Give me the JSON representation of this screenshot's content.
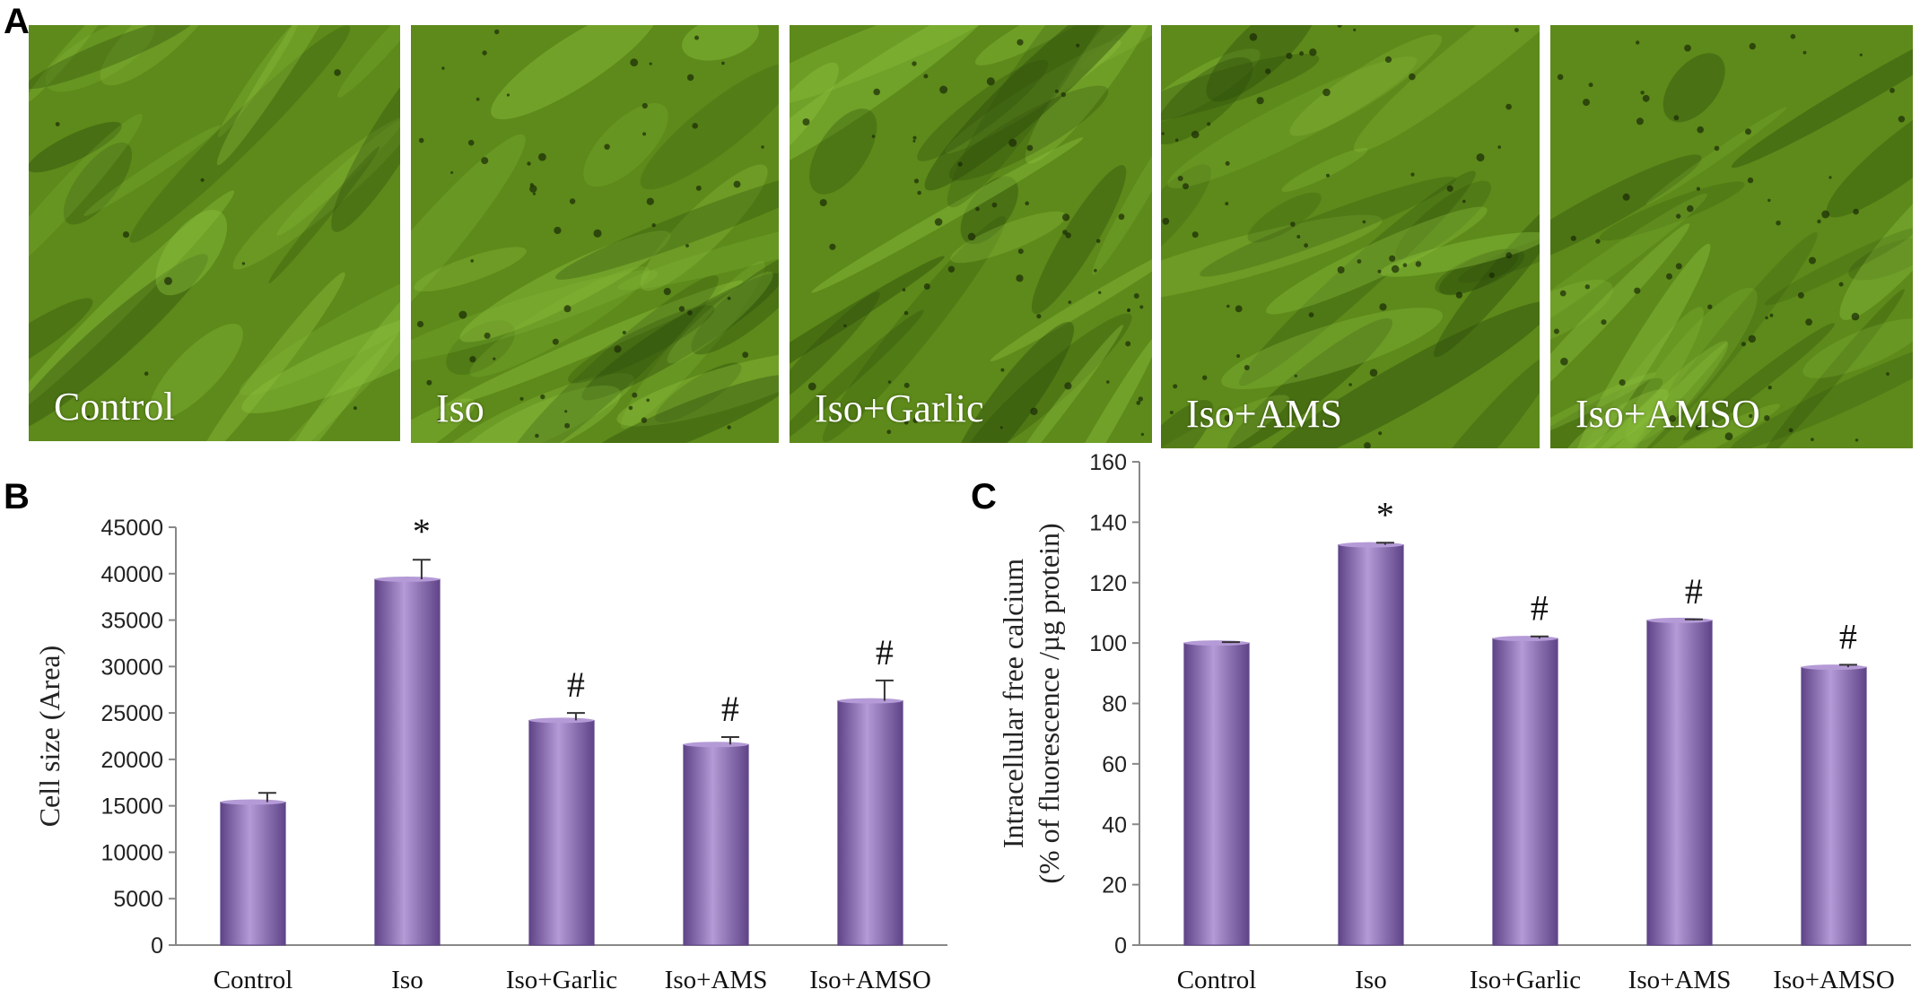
{
  "panel_a": {
    "letter": "A",
    "images": [
      {
        "label": "Control"
      },
      {
        "label": "Iso"
      },
      {
        "label": "Iso+Garlic"
      },
      {
        "label": "Iso+AMS"
      },
      {
        "label": "Iso+AMSO"
      }
    ],
    "colors": {
      "base": "#5d8a1a",
      "light": "#8fc23f",
      "dark": "#2b4a0a"
    }
  },
  "chart_data": [
    {
      "panel": "B",
      "type": "bar",
      "categories": [
        "Control",
        "Iso",
        "Iso+Garlic",
        "Iso+AMS",
        "Iso+AMSO"
      ],
      "values": [
        15400,
        39400,
        24200,
        21600,
        26300
      ],
      "errors": [
        1000,
        2100,
        800,
        800,
        2200
      ],
      "markers": [
        "",
        "*",
        "#",
        "#",
        "#"
      ],
      "ylabel_lines": [
        "Cell size (Area)"
      ],
      "yticks": [
        0,
        5000,
        10000,
        15000,
        20000,
        25000,
        30000,
        35000,
        40000,
        45000
      ],
      "ylim": [
        0,
        45000
      ],
      "bar_color": "#8a68b8",
      "bar_color_light": "#b49ad6",
      "bar_color_dark": "#5f4488",
      "grid": false
    },
    {
      "panel": "C",
      "type": "bar",
      "categories": [
        "Control",
        "Iso",
        "Iso+Garlic",
        "Iso+AMS",
        "Iso+AMSO"
      ],
      "values": [
        100,
        132.5,
        101.5,
        107.5,
        92
      ],
      "errors": [
        0.3,
        0.7,
        0.7,
        0.3,
        0.8
      ],
      "markers": [
        "",
        "*",
        "#",
        "#",
        "#"
      ],
      "ylabel_lines": [
        "Intracellular free calcium",
        "(% of fluorescence /µg protein)"
      ],
      "yticks": [
        0,
        20,
        40,
        60,
        80,
        100,
        120,
        140,
        160
      ],
      "ylim": [
        0,
        160
      ],
      "bar_color": "#8a68b8",
      "bar_color_light": "#b49ad6",
      "bar_color_dark": "#5f4488",
      "grid": false
    }
  ]
}
